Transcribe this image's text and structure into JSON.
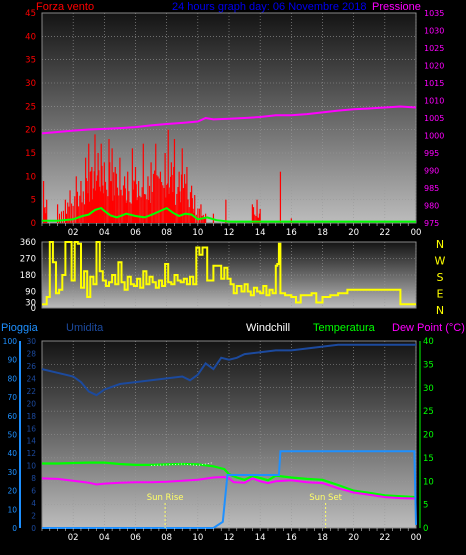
{
  "colors": {
    "background": "#000000",
    "plot_bg_top": "#141414",
    "plot_bg_bottom": "#bcbcbc",
    "wind_speed": "#ff0000",
    "wind_gust": "#00ff00",
    "pressure": "#ff00ff",
    "direction": "#ffff00",
    "rain": "#1e90ff",
    "humidity": "#1c4a9e",
    "windchill": "#ffffff",
    "temperature": "#00ff00",
    "dew_point": "#ff00ff",
    "sun": "#ffff66",
    "axis_text": "#ffffff"
  },
  "header": {
    "wind_label": "Forza vento",
    "title": "24 hours graph day:  06 Novembre 2018",
    "pressure_label": "Pressione"
  },
  "bottom_header": {
    "rain_label": "Pioggia",
    "humidity_label": "Umidita",
    "windchill_label": "Windchill",
    "temperature_label": "Temperatura",
    "dewpoint_label": "Dew Point (°C)"
  },
  "compass": [
    "N",
    "W",
    "S",
    "E",
    "N"
  ],
  "time_ticks": [
    "02",
    "04",
    "06",
    "08",
    "10",
    "12",
    "14",
    "16",
    "18",
    "20",
    "22",
    "00"
  ],
  "sun": {
    "rise_label": "Sun Rise",
    "set_label": "Sun Set",
    "rise_hour": 7.9,
    "set_hour": 18.2
  },
  "chart_data": [
    {
      "type": "bar",
      "name": "wind",
      "x_range_hours": [
        0,
        24
      ],
      "ylim_left": [
        0,
        45
      ],
      "left_ticks": [
        0,
        5,
        10,
        15,
        20,
        25,
        30,
        35,
        40,
        45
      ],
      "ylim_right": [
        975,
        1035
      ],
      "right_ticks": [
        975,
        980,
        985,
        990,
        995,
        1000,
        1005,
        1010,
        1015,
        1020,
        1025,
        1030,
        1035
      ],
      "wind_speed_peaks": [
        [
          0.1,
          9
        ],
        [
          0.3,
          5
        ],
        [
          1.0,
          4
        ],
        [
          1.5,
          5
        ],
        [
          1.8,
          7
        ],
        [
          2.2,
          10
        ],
        [
          2.5,
          9
        ],
        [
          2.8,
          14
        ],
        [
          3.0,
          17
        ],
        [
          3.2,
          12
        ],
        [
          3.4,
          19
        ],
        [
          3.6,
          15
        ],
        [
          3.8,
          17
        ],
        [
          4.0,
          13
        ],
        [
          4.3,
          18
        ],
        [
          4.5,
          16
        ],
        [
          4.7,
          12
        ],
        [
          5.0,
          14
        ],
        [
          5.3,
          10
        ],
        [
          5.5,
          11
        ],
        [
          5.8,
          16
        ],
        [
          6.0,
          12
        ],
        [
          6.2,
          9
        ],
        [
          6.5,
          17
        ],
        [
          6.8,
          10
        ],
        [
          7.0,
          13
        ],
        [
          7.3,
          17
        ],
        [
          7.6,
          11
        ],
        [
          7.9,
          15
        ],
        [
          8.1,
          20
        ],
        [
          8.3,
          13
        ],
        [
          8.5,
          18
        ],
        [
          8.8,
          11
        ],
        [
          9.0,
          16
        ],
        [
          9.3,
          12
        ],
        [
          9.6,
          8
        ],
        [
          9.8,
          6
        ],
        [
          10.2,
          4
        ],
        [
          10.5,
          2
        ],
        [
          11.0,
          2
        ],
        [
          11.8,
          5
        ],
        [
          13.5,
          4
        ],
        [
          13.8,
          5
        ],
        [
          14.0,
          3
        ],
        [
          15.3,
          11
        ],
        [
          16.0,
          1
        ]
      ],
      "wind_gust": [
        [
          0,
          0.5
        ],
        [
          1.0,
          0.5
        ],
        [
          2.0,
          0.8
        ],
        [
          2.6,
          1.5
        ],
        [
          3.0,
          1.8
        ],
        [
          3.4,
          2.8
        ],
        [
          3.8,
          3.2
        ],
        [
          4.0,
          2.6
        ],
        [
          4.4,
          1.6
        ],
        [
          4.8,
          1.2
        ],
        [
          5.4,
          2.0
        ],
        [
          6.0,
          1.5
        ],
        [
          6.6,
          1.2
        ],
        [
          7.2,
          2.0
        ],
        [
          7.6,
          2.6
        ],
        [
          8.0,
          3.2
        ],
        [
          8.4,
          2.2
        ],
        [
          8.8,
          1.5
        ],
        [
          9.2,
          2.0
        ],
        [
          9.6,
          1.8
        ],
        [
          10.0,
          0.8
        ],
        [
          10.6,
          1.2
        ],
        [
          11.2,
          0.6
        ],
        [
          12.0,
          0.3
        ],
        [
          13.0,
          0.3
        ],
        [
          24,
          0.3
        ]
      ],
      "pressure": [
        [
          0,
          1000.6
        ],
        [
          1,
          1001.0
        ],
        [
          2,
          1001.4
        ],
        [
          3,
          1001.7
        ],
        [
          4,
          1001.9
        ],
        [
          5,
          1002.1
        ],
        [
          6,
          1002.4
        ],
        [
          7,
          1002.9
        ],
        [
          8,
          1003.3
        ],
        [
          9,
          1003.6
        ],
        [
          10,
          1004.0
        ],
        [
          10.5,
          1005.0
        ],
        [
          11,
          1004.6
        ],
        [
          12,
          1004.8
        ],
        [
          13,
          1005.0
        ],
        [
          14,
          1005.3
        ],
        [
          15,
          1005.8
        ],
        [
          16,
          1005.8
        ],
        [
          17,
          1006.1
        ],
        [
          18,
          1006.6
        ],
        [
          19,
          1007.1
        ],
        [
          20,
          1007.5
        ],
        [
          21,
          1007.7
        ],
        [
          22,
          1008.0
        ],
        [
          23,
          1008.3
        ],
        [
          24,
          1008.0
        ]
      ]
    },
    {
      "type": "line",
      "name": "wind direction",
      "x_range_hours": [
        0,
        24
      ],
      "ylim": [
        0,
        360
      ],
      "ticks": [
        0,
        30,
        90,
        180,
        270,
        360
      ],
      "direction": [
        [
          0,
          20
        ],
        [
          0.3,
          60
        ],
        [
          0.5,
          360
        ],
        [
          0.7,
          250
        ],
        [
          0.9,
          80
        ],
        [
          1.1,
          100
        ],
        [
          1.3,
          180
        ],
        [
          1.5,
          360
        ],
        [
          1.7,
          360
        ],
        [
          1.9,
          150
        ],
        [
          2.1,
          360
        ],
        [
          2.3,
          350
        ],
        [
          2.5,
          110
        ],
        [
          2.7,
          200
        ],
        [
          2.9,
          60
        ],
        [
          3.1,
          170
        ],
        [
          3.3,
          130
        ],
        [
          3.5,
          360
        ],
        [
          3.7,
          200
        ],
        [
          3.9,
          150
        ],
        [
          4.1,
          120
        ],
        [
          4.3,
          140
        ],
        [
          4.5,
          180
        ],
        [
          4.7,
          130
        ],
        [
          4.9,
          250
        ],
        [
          5.1,
          140
        ],
        [
          5.3,
          100
        ],
        [
          5.5,
          170
        ],
        [
          5.7,
          130
        ],
        [
          5.9,
          120
        ],
        [
          6.1,
          160
        ],
        [
          6.3,
          110
        ],
        [
          6.5,
          200
        ],
        [
          6.7,
          130
        ],
        [
          6.9,
          170
        ],
        [
          7.1,
          140
        ],
        [
          7.3,
          110
        ],
        [
          7.5,
          150
        ],
        [
          7.7,
          120
        ],
        [
          7.9,
          240
        ],
        [
          8.1,
          140
        ],
        [
          8.3,
          130
        ],
        [
          8.5,
          180
        ],
        [
          8.7,
          150
        ],
        [
          8.9,
          140
        ],
        [
          9.1,
          160
        ],
        [
          9.3,
          130
        ],
        [
          9.5,
          170
        ],
        [
          9.7,
          130
        ],
        [
          9.9,
          330
        ],
        [
          10.1,
          290
        ],
        [
          10.3,
          330
        ],
        [
          10.6,
          150
        ],
        [
          11.0,
          230
        ],
        [
          11.5,
          160
        ],
        [
          11.7,
          220
        ],
        [
          11.9,
          160
        ],
        [
          12.1,
          130
        ],
        [
          12.3,
          80
        ],
        [
          12.5,
          120
        ],
        [
          12.8,
          90
        ],
        [
          13.0,
          130
        ],
        [
          13.2,
          90
        ],
        [
          13.4,
          70
        ],
        [
          13.6,
          110
        ],
        [
          13.8,
          90
        ],
        [
          14.0,
          80
        ],
        [
          14.2,
          120
        ],
        [
          14.4,
          70
        ],
        [
          14.6,
          100
        ],
        [
          14.8,
          80
        ],
        [
          15.0,
          230
        ],
        [
          15.1,
          240
        ],
        [
          15.2,
          350
        ],
        [
          15.3,
          80
        ],
        [
          15.6,
          70
        ],
        [
          16.0,
          60
        ],
        [
          16.3,
          30
        ],
        [
          16.6,
          70
        ],
        [
          17.0,
          70
        ],
        [
          17.3,
          80
        ],
        [
          17.6,
          30
        ],
        [
          18.0,
          60
        ],
        [
          18.5,
          70
        ],
        [
          19.0,
          80
        ],
        [
          19.6,
          100
        ],
        [
          20.5,
          100
        ],
        [
          21.5,
          100
        ],
        [
          22.8,
          100
        ],
        [
          23.0,
          20
        ],
        [
          24,
          20
        ]
      ]
    },
    {
      "type": "line",
      "name": "temperature humidity rain",
      "x_range_hours": [
        0,
        24
      ],
      "ylim_humidity": [
        0,
        100
      ],
      "humidity_ticks": [
        0,
        10,
        20,
        30,
        40,
        50,
        60,
        70,
        80,
        90,
        100
      ],
      "ylim_rain": [
        0,
        30
      ],
      "rain_ticks": [
        0,
        2,
        4,
        6,
        8,
        10,
        12,
        14,
        16,
        18,
        20,
        22,
        24,
        26,
        28,
        30
      ],
      "ylim_temperature": [
        0,
        40
      ],
      "temperature_ticks": [
        0,
        5,
        10,
        15,
        20,
        25,
        30,
        35,
        40
      ],
      "humidity": [
        [
          0,
          85
        ],
        [
          1,
          83
        ],
        [
          2,
          81
        ],
        [
          2.5,
          78
        ],
        [
          3,
          73
        ],
        [
          3.5,
          71
        ],
        [
          4,
          74
        ],
        [
          5,
          77
        ],
        [
          6,
          78
        ],
        [
          7,
          79
        ],
        [
          8,
          80
        ],
        [
          9,
          81
        ],
        [
          9.5,
          79
        ],
        [
          10,
          82
        ],
        [
          10.5,
          88
        ],
        [
          11,
          85
        ],
        [
          11.5,
          91
        ],
        [
          12,
          90
        ],
        [
          12.5,
          91
        ],
        [
          13,
          93
        ],
        [
          14,
          94
        ],
        [
          15,
          95
        ],
        [
          16,
          95
        ],
        [
          17,
          96
        ],
        [
          18,
          97
        ],
        [
          19,
          98
        ],
        [
          20,
          98
        ],
        [
          21,
          98
        ],
        [
          22,
          98
        ],
        [
          23,
          98
        ],
        [
          24,
          98
        ]
      ],
      "rain_total": [
        [
          0,
          0
        ],
        [
          11.0,
          0
        ],
        [
          11.6,
          1.0
        ],
        [
          11.9,
          8.5
        ],
        [
          15.2,
          8.5
        ],
        [
          15.3,
          12.3
        ],
        [
          23.9,
          12.3
        ],
        [
          24,
          0.5
        ]
      ],
      "windchill": [
        [
          7,
          13.4
        ],
        [
          8,
          13.5
        ],
        [
          9,
          13.7
        ],
        [
          10,
          13.4
        ],
        [
          11,
          14.0
        ]
      ],
      "temperature": [
        [
          0,
          13.8
        ],
        [
          1,
          13.8
        ],
        [
          2,
          13.9
        ],
        [
          3,
          14.0
        ],
        [
          4,
          14.0
        ],
        [
          5,
          13.7
        ],
        [
          6,
          13.5
        ],
        [
          7,
          13.5
        ],
        [
          8,
          13.6
        ],
        [
          9,
          13.7
        ],
        [
          10,
          13.6
        ],
        [
          11,
          13.2
        ],
        [
          11.7,
          12.6
        ],
        [
          12,
          11.5
        ],
        [
          12.5,
          10.8
        ],
        [
          13,
          10.3
        ],
        [
          13.5,
          11.1
        ],
        [
          14,
          10.7
        ],
        [
          14.5,
          10.2
        ],
        [
          15,
          11.2
        ],
        [
          16,
          10.8
        ],
        [
          17,
          10.5
        ],
        [
          18,
          10.3
        ],
        [
          19,
          9.2
        ],
        [
          20,
          8.0
        ],
        [
          21,
          7.5
        ],
        [
          22,
          7.0
        ],
        [
          23,
          6.8
        ],
        [
          24,
          6.6
        ]
      ],
      "dew_point": [
        [
          0,
          10.6
        ],
        [
          1,
          10.5
        ],
        [
          2,
          10.1
        ],
        [
          3,
          9.7
        ],
        [
          3.5,
          9.3
        ],
        [
          4,
          9.5
        ],
        [
          5,
          9.7
        ],
        [
          6,
          9.8
        ],
        [
          7,
          9.8
        ],
        [
          8,
          9.9
        ],
        [
          9,
          10.1
        ],
        [
          10,
          10.3
        ],
        [
          11,
          10.8
        ],
        [
          11.7,
          10.9
        ],
        [
          12,
          10.6
        ],
        [
          12.3,
          9.8
        ],
        [
          13,
          9.7
        ],
        [
          13.5,
          10.6
        ],
        [
          14,
          10.0
        ],
        [
          14.5,
          9.6
        ],
        [
          15,
          10.0
        ],
        [
          16,
          10.2
        ],
        [
          17,
          9.8
        ],
        [
          18,
          9.6
        ],
        [
          19,
          8.5
        ],
        [
          20,
          7.6
        ],
        [
          21,
          7.1
        ],
        [
          22,
          6.6
        ],
        [
          23,
          6.4
        ],
        [
          24,
          6.3
        ]
      ]
    }
  ]
}
